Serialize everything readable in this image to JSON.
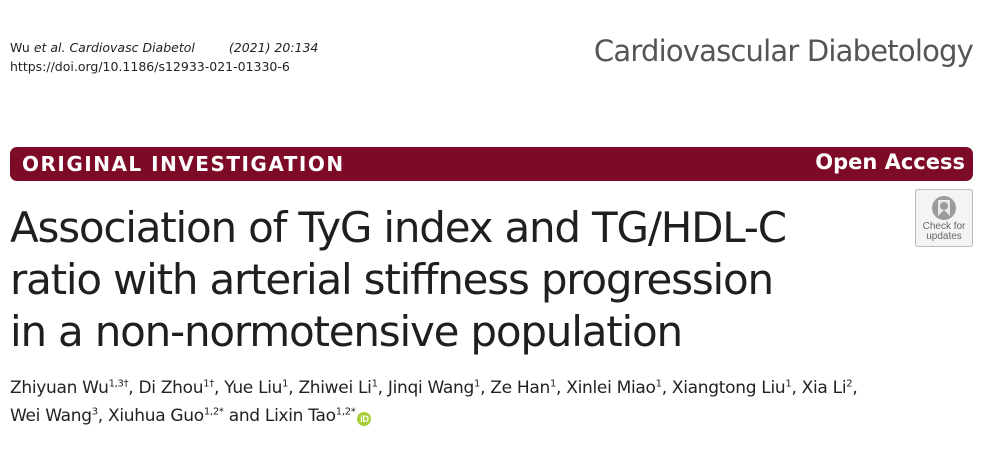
{
  "citation": {
    "authors_prefix": "Wu ",
    "etal_journal": "et al. Cardiovasc Diabetol",
    "year_vol": "(2021) 20:134",
    "doi": "https://doi.org/10.1186/s12933-021-01330-6"
  },
  "journal_name": "Cardiovascular Diabetology",
  "article_type": "ORIGINAL INVESTIGATION",
  "open_access": "Open Access",
  "title_lines": [
    "Association of TyG index and TG/HDL-C",
    "ratio with arterial stiffness progression",
    "in a non-normotensive population"
  ],
  "badge": {
    "line1": "Check for",
    "line2": "updates",
    "icon": "check-for-updates-icon"
  },
  "authors": [
    {
      "name": "Zhiyuan Wu",
      "sup": "1,3†"
    },
    {
      "name": "Di Zhou",
      "sup": "1†"
    },
    {
      "name": "Yue Liu",
      "sup": "1"
    },
    {
      "name": "Zhiwei Li",
      "sup": "1"
    },
    {
      "name": "Jinqi Wang",
      "sup": "1"
    },
    {
      "name": "Ze Han",
      "sup": "1"
    },
    {
      "name": "Xinlei Miao",
      "sup": "1"
    },
    {
      "name": "Xiangtong Liu",
      "sup": "1"
    },
    {
      "name": "Xia Li",
      "sup": "2"
    },
    {
      "name": "Wei Wang",
      "sup": "3"
    },
    {
      "name": "Xiuhua Guo",
      "sup": "1,2*"
    },
    {
      "name": "Lixin Tao",
      "sup": "1,2*"
    }
  ],
  "authors_and": "and",
  "orcid_label": "iD",
  "colors": {
    "band": "#7d0a27",
    "orcid": "#a6ce39"
  }
}
